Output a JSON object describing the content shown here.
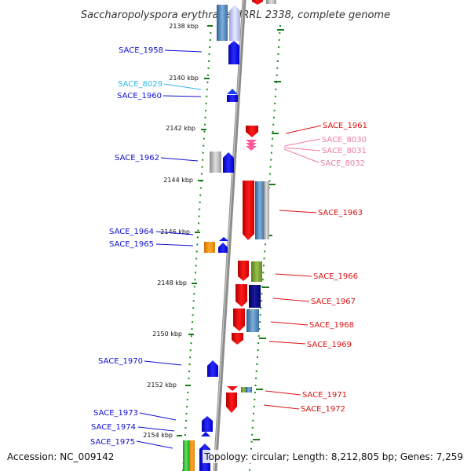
{
  "title": "Saccharopolyspora erythraea NRRL 2338, complete genome",
  "footer": {
    "accession": "Accession: NC_009142",
    "summary": "Topology: circular; Length: 8,212,805 bp; Genes: 7,259"
  },
  "colors": {
    "axis": "#8c8c8c",
    "tick": "#1a7a1a",
    "left_label": "#1010d0",
    "left_light_label": "#30b8e8",
    "right_label": "#dd1111",
    "right_light_label": "#f07aa8"
  },
  "ticks": [
    {
      "label": "2138 kbp"
    },
    {
      "label": "2140 kbp"
    },
    {
      "label": "2142 kbp"
    },
    {
      "label": "2144 kbp"
    },
    {
      "label": "2146 kbp"
    },
    {
      "label": "2148 kbp"
    },
    {
      "label": "2150 kbp"
    },
    {
      "label": "2152 kbp"
    },
    {
      "label": "2154 kbp"
    }
  ],
  "left_labels": [
    {
      "text": "SACE_1958",
      "tone": "dark"
    },
    {
      "text": "SACE_8029",
      "tone": "light"
    },
    {
      "text": "SACE_1960",
      "tone": "dark"
    },
    {
      "text": "SACE_1962",
      "tone": "dark"
    },
    {
      "text": "SACE_1964",
      "tone": "dark"
    },
    {
      "text": "SACE_1965",
      "tone": "dark"
    },
    {
      "text": "SACE_1970",
      "tone": "dark"
    },
    {
      "text": "SACE_1973",
      "tone": "dark"
    },
    {
      "text": "SACE_1974",
      "tone": "dark"
    },
    {
      "text": "SACE_1975",
      "tone": "dark"
    }
  ],
  "right_labels": [
    {
      "text": "SACE_1961",
      "tone": "dark"
    },
    {
      "text": "SACE_8030",
      "tone": "light"
    },
    {
      "text": "SACE_8031",
      "tone": "light"
    },
    {
      "text": "SACE_8032",
      "tone": "light"
    },
    {
      "text": "SACE_1963",
      "tone": "dark"
    },
    {
      "text": "SACE_1966",
      "tone": "dark"
    },
    {
      "text": "SACE_1967",
      "tone": "dark"
    },
    {
      "text": "SACE_1968",
      "tone": "dark"
    },
    {
      "text": "SACE_1969",
      "tone": "dark"
    },
    {
      "text": "SACE_1971",
      "tone": "dark"
    },
    {
      "text": "SACE_1972",
      "tone": "dark"
    }
  ]
}
